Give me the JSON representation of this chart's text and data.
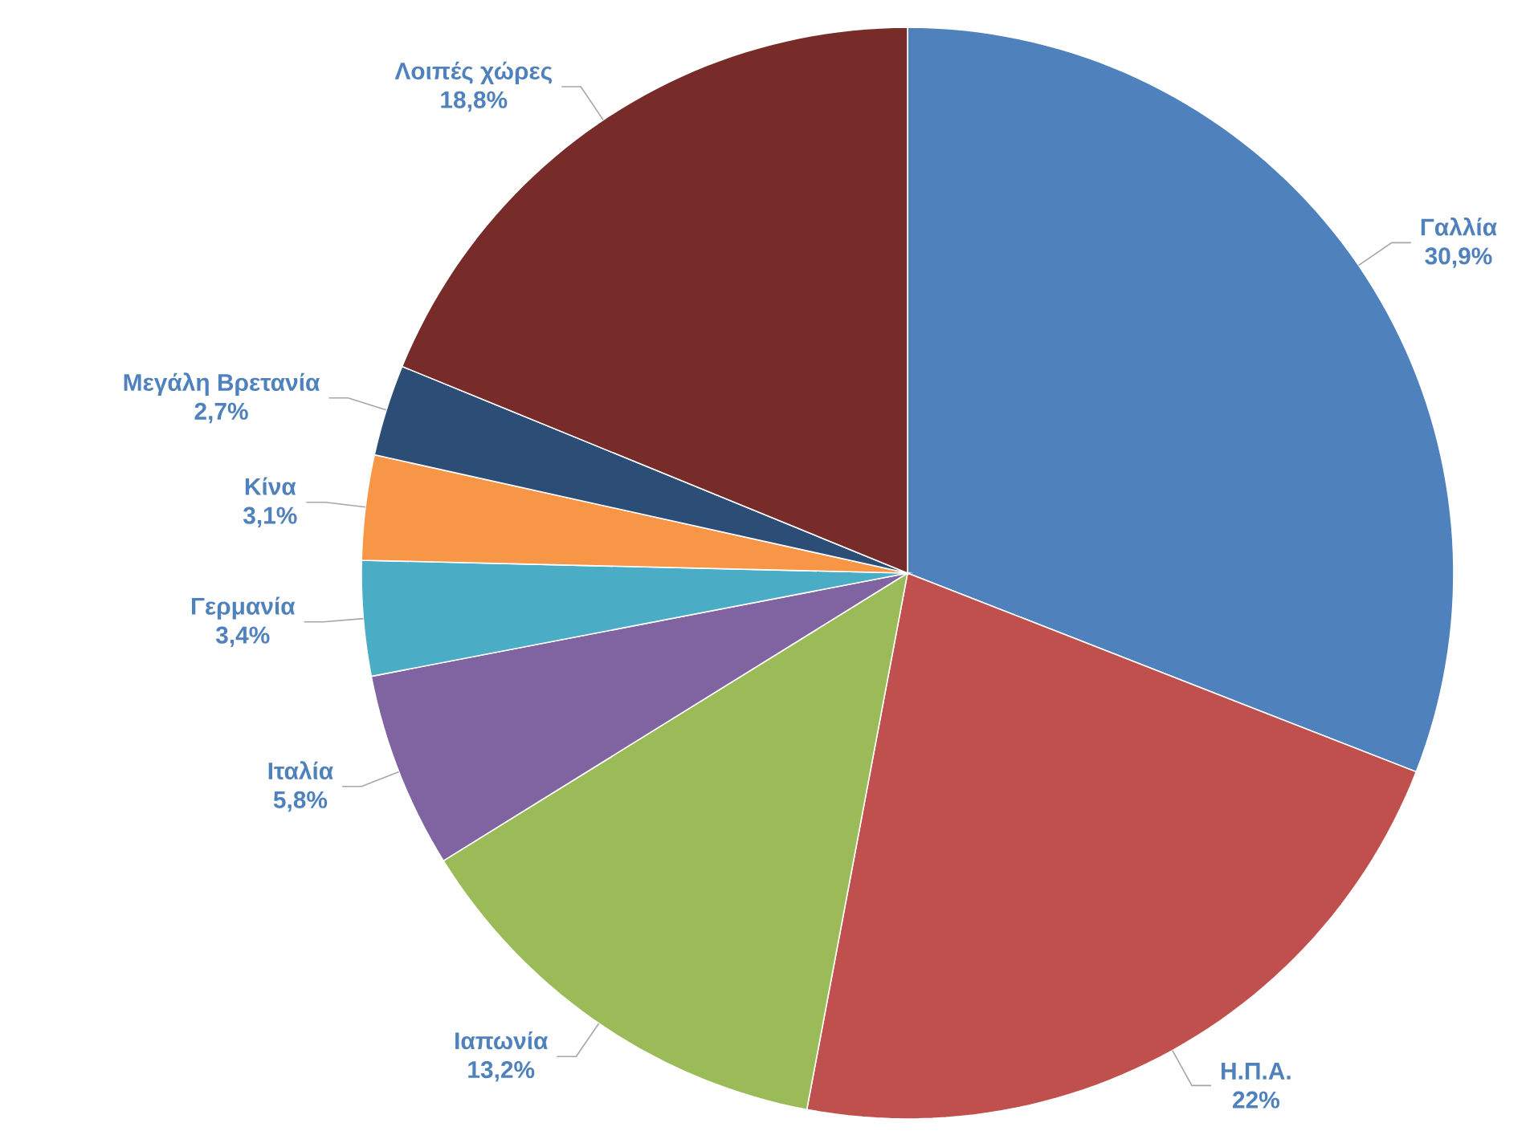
{
  "chart_data": {
    "type": "pie",
    "categories": [
      "Γαλλία",
      "Η.Π.Α.",
      "Ιαπωνία",
      "Ιταλία",
      "Γερμανία",
      "Κίνα",
      "Μεγάλη Βρετανία",
      "Λοιπές χώρες"
    ],
    "values": [
      30.9,
      22,
      13.2,
      5.8,
      3.4,
      3.1,
      2.7,
      18.8
    ],
    "value_labels": [
      "30,9%",
      "22%",
      "13,2%",
      "5,8%",
      "3,4%",
      "3,1%",
      "2,7%",
      "18,8%"
    ],
    "colors": [
      "#4f81bd",
      "#c0504d",
      "#9bbb59",
      "#8064a2",
      "#4bacc6",
      "#f79646",
      "#2c4d75",
      "#772c2a"
    ]
  }
}
